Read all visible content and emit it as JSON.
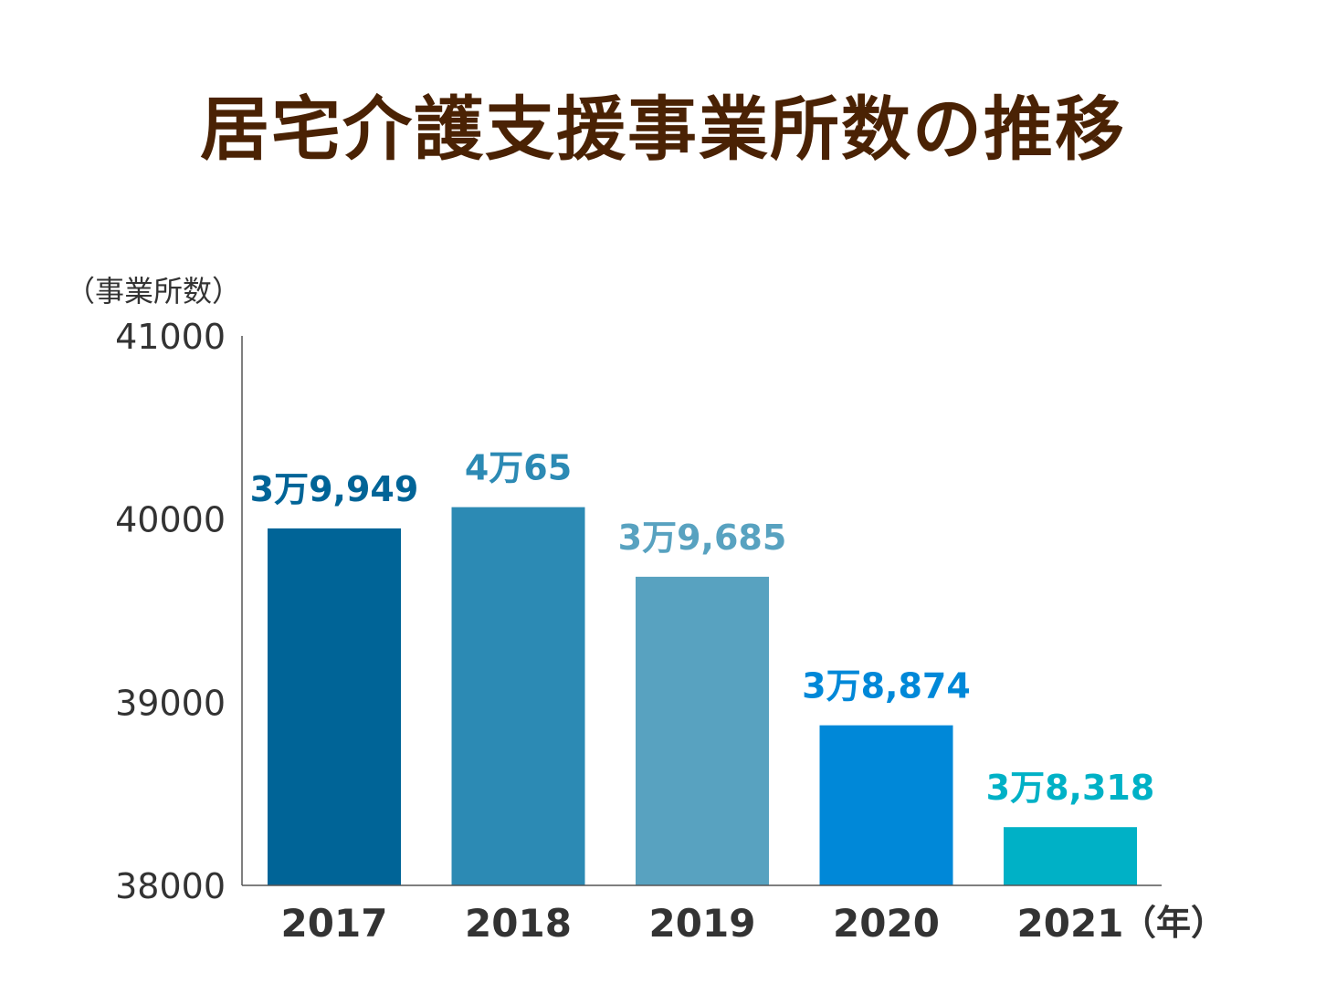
{
  "chart_data": {
    "type": "bar",
    "title": "居宅介護支援事業所数の推移",
    "ylabel": "（事業所数）",
    "xlabel": "（年）",
    "categories": [
      "2017",
      "2018",
      "2019",
      "2020",
      "2021"
    ],
    "values": [
      39949,
      40065,
      39685,
      38874,
      38318
    ],
    "data_labels": [
      "3万9,949",
      "4万65",
      "3万9,685",
      "3万8,874",
      "3万8,318"
    ],
    "colors": [
      "#006497",
      "#2c8ab4",
      "#58a2c0",
      "#0088d8",
      "#00b1c6"
    ],
    "ylim": [
      38000,
      41000
    ],
    "yticks": [
      38000,
      39000,
      40000,
      41000
    ],
    "grid": false,
    "legend": "none"
  }
}
